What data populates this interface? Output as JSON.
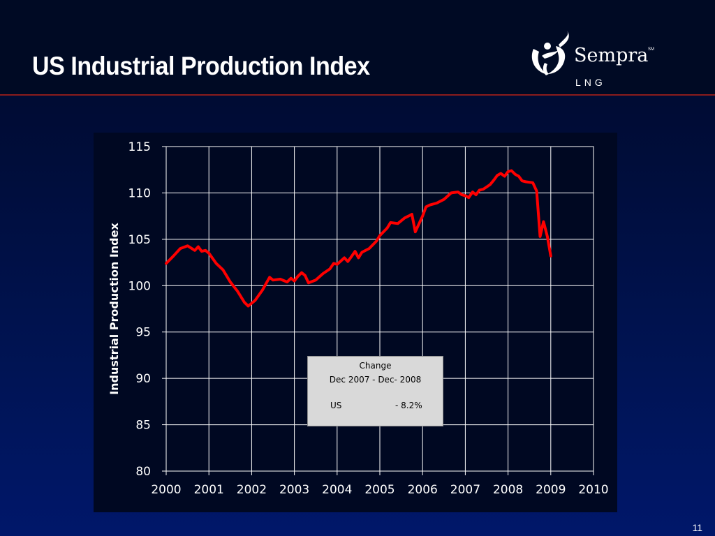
{
  "slide": {
    "title": "US Industrial Production Index",
    "page_number": "11"
  },
  "logo": {
    "name": "Sempra",
    "mark": "SM",
    "subtitle": "LNG"
  },
  "colors": {
    "background": "#00124a",
    "header_rule": "#8a1c1c",
    "series": "#ff0000",
    "grid": "#ffffff",
    "annotation_bg": "#d9d9d9"
  },
  "annotation": {
    "title": "Change",
    "range": "Dec 2007 - Dec- 2008",
    "region": "US",
    "value": "-  8.2%"
  },
  "chart_data": {
    "type": "line",
    "title": "",
    "xlabel": "",
    "ylabel": "Industrial Production Index",
    "xlim": [
      2000,
      2010
    ],
    "ylim": [
      80,
      115
    ],
    "x_ticks": [
      "2000",
      "2001",
      "2002",
      "2003",
      "2004",
      "2005",
      "2006",
      "2007",
      "2008",
      "2009",
      "2010"
    ],
    "y_ticks": [
      "80",
      "85",
      "90",
      "95",
      "100",
      "105",
      "110",
      "115"
    ],
    "grid": true,
    "legend": "none",
    "series": [
      {
        "color": "#ff0000",
        "points": [
          [
            2000.0,
            102.4
          ],
          [
            2000.17,
            103.2
          ],
          [
            2000.33,
            104.0
          ],
          [
            2000.5,
            104.3
          ],
          [
            2000.67,
            103.8
          ],
          [
            2000.75,
            104.2
          ],
          [
            2000.83,
            103.7
          ],
          [
            2000.92,
            103.8
          ],
          [
            2001.0,
            103.5
          ],
          [
            2001.17,
            102.4
          ],
          [
            2001.33,
            101.7
          ],
          [
            2001.5,
            100.4
          ],
          [
            2001.67,
            99.4
          ],
          [
            2001.83,
            98.2
          ],
          [
            2001.92,
            97.8
          ],
          [
            2002.0,
            98.1
          ],
          [
            2002.08,
            98.4
          ],
          [
            2002.25,
            99.5
          ],
          [
            2002.42,
            100.9
          ],
          [
            2002.5,
            100.6
          ],
          [
            2002.67,
            100.7
          ],
          [
            2002.83,
            100.4
          ],
          [
            2002.92,
            100.8
          ],
          [
            2003.0,
            100.5
          ],
          [
            2003.08,
            101.0
          ],
          [
            2003.17,
            101.4
          ],
          [
            2003.25,
            101.1
          ],
          [
            2003.33,
            100.3
          ],
          [
            2003.5,
            100.6
          ],
          [
            2003.67,
            101.3
          ],
          [
            2003.83,
            101.8
          ],
          [
            2003.92,
            102.4
          ],
          [
            2004.0,
            102.3
          ],
          [
            2004.17,
            103.0
          ],
          [
            2004.25,
            102.6
          ],
          [
            2004.33,
            103.1
          ],
          [
            2004.42,
            103.7
          ],
          [
            2004.5,
            103.0
          ],
          [
            2004.58,
            103.6
          ],
          [
            2004.75,
            104.0
          ],
          [
            2004.92,
            104.8
          ],
          [
            2005.0,
            105.4
          ],
          [
            2005.17,
            106.2
          ],
          [
            2005.25,
            106.8
          ],
          [
            2005.42,
            106.7
          ],
          [
            2005.58,
            107.3
          ],
          [
            2005.67,
            107.5
          ],
          [
            2005.75,
            107.7
          ],
          [
            2005.83,
            105.8
          ],
          [
            2006.0,
            107.5
          ],
          [
            2006.08,
            108.5
          ],
          [
            2006.17,
            108.7
          ],
          [
            2006.33,
            108.9
          ],
          [
            2006.5,
            109.3
          ],
          [
            2006.67,
            110.0
          ],
          [
            2006.83,
            110.1
          ],
          [
            2006.92,
            109.8
          ],
          [
            2007.0,
            109.7
          ],
          [
            2007.08,
            109.5
          ],
          [
            2007.17,
            110.1
          ],
          [
            2007.25,
            109.8
          ],
          [
            2007.33,
            110.3
          ],
          [
            2007.42,
            110.4
          ],
          [
            2007.58,
            110.9
          ],
          [
            2007.67,
            111.4
          ],
          [
            2007.75,
            111.9
          ],
          [
            2007.83,
            112.1
          ],
          [
            2007.92,
            111.8
          ],
          [
            2008.0,
            112.3
          ],
          [
            2008.08,
            112.4
          ],
          [
            2008.17,
            112.0
          ],
          [
            2008.25,
            111.8
          ],
          [
            2008.33,
            111.3
          ],
          [
            2008.42,
            111.2
          ],
          [
            2008.58,
            111.1
          ],
          [
            2008.67,
            110.2
          ],
          [
            2008.75,
            105.3
          ],
          [
            2008.83,
            106.9
          ],
          [
            2008.92,
            105.3
          ],
          [
            2009.0,
            103.2
          ]
        ]
      }
    ]
  }
}
